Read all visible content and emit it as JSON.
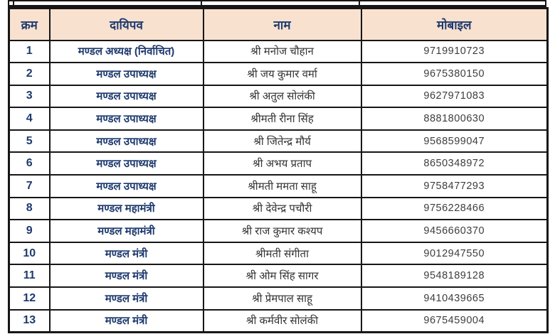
{
  "colors": {
    "header_bg": "#f9e1d0",
    "navy_text": "#1e3a6e",
    "body_text": "#333333",
    "border": "#161616",
    "page_bg": "#ffffff"
  },
  "table": {
    "headers": {
      "serial": "क्रम",
      "designation": "दायिपव",
      "name": "नाम",
      "mobile": "मोबाइल"
    },
    "rows": [
      {
        "serial": "1",
        "designation": "मण्डल अध्यक्ष (निर्वाचित)",
        "name": "श्री मनोज चौहान",
        "mobile": "9719910723"
      },
      {
        "serial": "2",
        "designation": "मण्डल उपाध्यक्ष",
        "name": "श्री जय कुमार वर्मा",
        "mobile": "9675380150"
      },
      {
        "serial": "3",
        "designation": "मण्डल उपाध्यक्ष",
        "name": "श्री अतुल सोलंकी",
        "mobile": "9627971083"
      },
      {
        "serial": "4",
        "designation": "मण्डल उपाध्यक्ष",
        "name": "श्रीमती रीना सिंह",
        "mobile": "8881800630"
      },
      {
        "serial": "5",
        "designation": "मण्डल उपाध्यक्ष",
        "name": "श्री जितेन्द्र मौर्य",
        "mobile": "9568599047"
      },
      {
        "serial": "6",
        "designation": "मण्डल उपाध्यक्ष",
        "name": "श्री अभय प्रताप",
        "mobile": "8650348972"
      },
      {
        "serial": "7",
        "designation": "मण्डल उपाध्यक्ष",
        "name": "श्रीमती ममता साहू",
        "mobile": "9758477293"
      },
      {
        "serial": "8",
        "designation": "मण्डल महामंत्री",
        "name": "श्री देवेन्द्र पचौरी",
        "mobile": "9756228466"
      },
      {
        "serial": "9",
        "designation": "मण्डल महामंत्री",
        "name": "श्री राज कुमार कश्यप",
        "mobile": "9456660370"
      },
      {
        "serial": "10",
        "designation": "मण्डल मंत्री",
        "name": "श्रीमती संगीता",
        "mobile": "9012947550"
      },
      {
        "serial": "11",
        "designation": "मण्डल मंत्री",
        "name": "श्री ओम सिंह सागर",
        "mobile": "9548189128"
      },
      {
        "serial": "12",
        "designation": "मण्डल मंत्री",
        "name": "श्री प्रेमपाल साहू",
        "mobile": "9410439665"
      },
      {
        "serial": "13",
        "designation": "मण्डल मंत्री",
        "name": "श्री कर्मवीर सोलंकी",
        "mobile": "9675459004"
      }
    ]
  }
}
